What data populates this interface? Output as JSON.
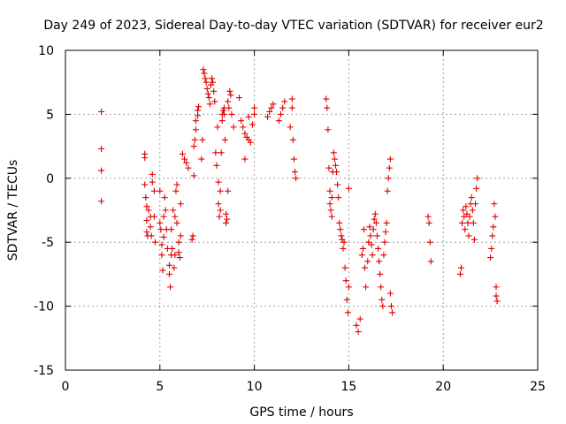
{
  "chart_data": {
    "type": "scatter",
    "title": "Day 249 of 2023, Sidereal Day-to-day VTEC variation (SDTVAR) for receiver eur2",
    "xlabel": "GPS time / hours",
    "ylabel": "SDTVAR / TECUs",
    "xlim": [
      0,
      25
    ],
    "ylim": [
      -15,
      10
    ],
    "xticks": [
      "0",
      "5",
      "10",
      "15",
      "20",
      "25"
    ],
    "yticks": [
      "-15",
      "-10",
      "-5",
      "0",
      "5",
      "10"
    ],
    "grid": true,
    "marker": "+",
    "color": "#e00000",
    "series": [
      {
        "name": "SDTVAR",
        "x": [
          1.9,
          1.9,
          1.9,
          1.9,
          4.2,
          4.2,
          4.2,
          4.25,
          4.3,
          4.3,
          4.3,
          4.35,
          4.4,
          4.5,
          4.5,
          4.55,
          4.6,
          4.6,
          4.7,
          4.7,
          4.75,
          5.0,
          5.0,
          5.05,
          5.1,
          5.1,
          5.15,
          5.2,
          5.2,
          5.25,
          5.3,
          5.35,
          5.4,
          5.5,
          5.5,
          5.55,
          5.6,
          5.6,
          5.65,
          5.7,
          5.75,
          5.8,
          5.8,
          5.85,
          5.9,
          5.9,
          6.0,
          6.0,
          6.05,
          6.1,
          6.1,
          6.2,
          6.3,
          6.4,
          6.5,
          6.7,
          6.75,
          6.8,
          6.8,
          6.85,
          6.9,
          6.9,
          7.0,
          7.0,
          7.05,
          7.2,
          7.25,
          7.3,
          7.35,
          7.4,
          7.45,
          7.5,
          7.55,
          7.6,
          7.65,
          7.7,
          7.75,
          7.8,
          7.85,
          7.9,
          7.95,
          8.0,
          8.05,
          8.1,
          8.1,
          8.15,
          8.2,
          8.2,
          8.25,
          8.3,
          8.3,
          8.35,
          8.4,
          8.4,
          8.45,
          8.5,
          8.5,
          8.55,
          8.6,
          8.6,
          8.65,
          8.7,
          8.75,
          8.8,
          8.9,
          9.2,
          9.3,
          9.4,
          9.5,
          9.6,
          9.7,
          9.8,
          9.9,
          10.0,
          10.0,
          9.5,
          9.6,
          9.7,
          10.7,
          10.8,
          10.9,
          11.0,
          11.3,
          11.4,
          11.5,
          11.6,
          11.9,
          12.0,
          12.0,
          12.05,
          12.1,
          12.15,
          12.2,
          13.8,
          13.85,
          13.9,
          13.95,
          14.0,
          14.0,
          14.05,
          14.1,
          14.1,
          14.15,
          14.2,
          14.25,
          14.3,
          14.35,
          14.4,
          14.45,
          14.5,
          14.55,
          14.6,
          14.65,
          14.7,
          14.75,
          14.8,
          14.85,
          14.9,
          14.95,
          15.0,
          15.0,
          15.4,
          15.5,
          15.6,
          15.7,
          15.75,
          15.8,
          15.85,
          15.9,
          16.0,
          16.05,
          16.1,
          16.15,
          16.2,
          16.25,
          16.3,
          16.35,
          16.4,
          16.45,
          16.5,
          16.55,
          16.6,
          16.65,
          16.7,
          16.75,
          16.8,
          16.85,
          16.9,
          16.95,
          17.0,
          17.05,
          17.1,
          17.15,
          17.2,
          17.2,
          17.25,
          17.3,
          19.2,
          19.25,
          19.3,
          19.35,
          20.9,
          20.95,
          21.0,
          21.05,
          21.1,
          21.15,
          21.2,
          21.25,
          21.3,
          21.35,
          21.4,
          21.45,
          21.5,
          21.55,
          21.6,
          21.65,
          21.7,
          21.75,
          21.8,
          22.5,
          22.55,
          22.6,
          22.65,
          22.7,
          22.75,
          22.8,
          22.8,
          22.85
        ],
        "y": [
          5.2,
          2.3,
          0.6,
          -1.8,
          1.9,
          1.6,
          -0.5,
          -1.5,
          -2.2,
          -3.3,
          -4.2,
          -4.5,
          -2.5,
          -3.0,
          -3.8,
          -4.5,
          0.3,
          -0.3,
          -1.0,
          -3.0,
          -5.0,
          -1.0,
          -3.5,
          -4.0,
          -5.2,
          -6.0,
          -7.2,
          -4.6,
          -3.0,
          -1.5,
          -2.5,
          -4.0,
          -5.5,
          -6.8,
          -7.5,
          -8.5,
          -6.0,
          -4.0,
          -5.5,
          -2.5,
          -7.0,
          -6.0,
          -3.0,
          -1.0,
          -0.5,
          -3.5,
          -5.0,
          -5.8,
          -6.2,
          -4.5,
          -2.0,
          1.9,
          1.5,
          1.2,
          0.8,
          -4.8,
          -4.5,
          0.2,
          2.5,
          3.0,
          3.8,
          4.5,
          4.9,
          5.3,
          5.6,
          1.5,
          3.0,
          8.5,
          8.2,
          7.8,
          7.5,
          7.0,
          6.6,
          6.3,
          5.8,
          7.3,
          7.8,
          7.5,
          6.8,
          6.0,
          2.0,
          1.0,
          4.0,
          -0.3,
          -2.0,
          -3.0,
          -1.0,
          -2.5,
          2.0,
          4.5,
          5.0,
          5.3,
          5.5,
          5.0,
          3.0,
          -2.8,
          -3.5,
          -3.2,
          -1.0,
          6.0,
          5.5,
          6.8,
          6.5,
          5.0,
          4.0,
          6.3,
          4.5,
          4.0,
          3.5,
          3.2,
          3.0,
          2.8,
          4.2,
          5.5,
          5.0,
          1.5,
          3.2,
          4.8,
          4.8,
          5.2,
          5.5,
          5.8,
          4.5,
          5.0,
          5.5,
          6.0,
          4.0,
          5.5,
          6.2,
          3.0,
          1.5,
          0.5,
          0.0,
          6.2,
          5.5,
          3.8,
          0.8,
          -1.0,
          -2.0,
          -2.5,
          -3.0,
          -1.5,
          0.5,
          2.0,
          1.5,
          1.0,
          0.5,
          -0.5,
          -1.5,
          -3.5,
          -4.0,
          -4.5,
          -4.8,
          -5.5,
          -5.0,
          -7.0,
          -8.0,
          -9.5,
          -10.5,
          -8.5,
          -0.8,
          -11.5,
          -12.0,
          -11.0,
          -6.0,
          -5.5,
          -4.0,
          -7.0,
          -8.5,
          -6.5,
          -5.0,
          -3.8,
          -4.5,
          -5.2,
          -6.0,
          -4.0,
          -3.2,
          -2.8,
          -3.5,
          -4.5,
          -5.5,
          -6.5,
          -7.5,
          -8.5,
          -9.5,
          -10.0,
          -6.0,
          -5.0,
          -4.2,
          -3.5,
          -1.0,
          0.0,
          0.8,
          1.5,
          -9.0,
          -10.0,
          -10.5,
          -3.0,
          -3.5,
          -5.0,
          -6.5,
          -7.5,
          -7.0,
          -3.5,
          -2.5,
          -3.0,
          -4.0,
          -2.2,
          -2.8,
          -3.5,
          -4.5,
          -3.0,
          -2.0,
          -1.5,
          -2.5,
          -3.5,
          -4.8,
          -2.0,
          -0.8,
          0.0,
          -6.2,
          -5.5,
          -4.5,
          -3.8,
          -2.0,
          -3.0,
          -8.5,
          -9.2,
          -9.6
        ]
      }
    ]
  }
}
